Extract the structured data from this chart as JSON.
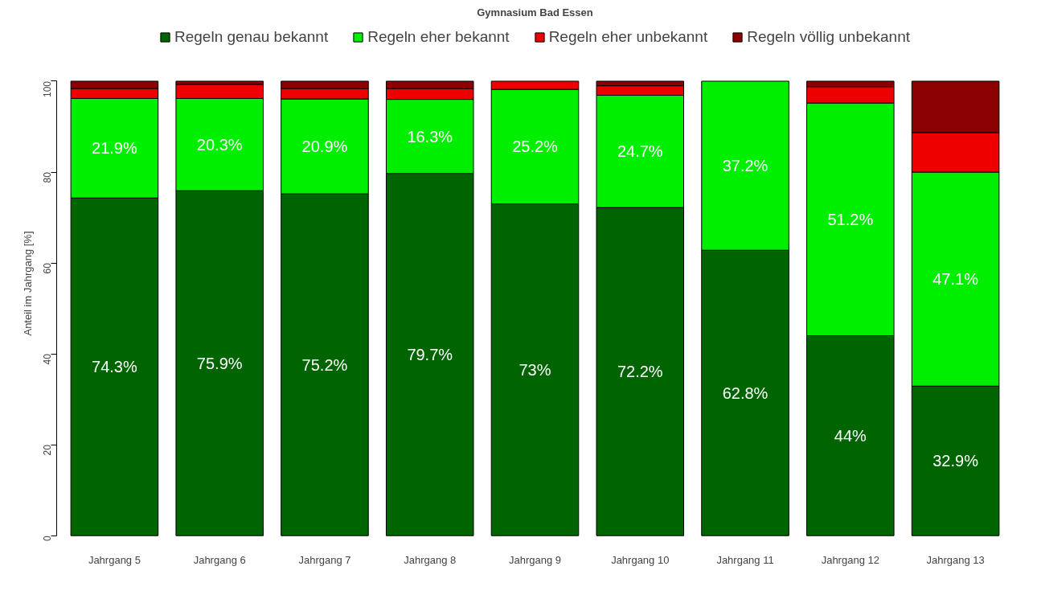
{
  "chart_data": {
    "type": "bar",
    "title": "Gymnasium Bad Essen",
    "ylabel": "Anteil im Jahrgang [%]",
    "stacked": true,
    "legend": "top",
    "grid": false,
    "categories": [
      "Jahrgang 5",
      "Jahrgang 6",
      "Jahrgang 7",
      "Jahrgang 8",
      "Jahrgang 9",
      "Jahrgang 10",
      "Jahrgang 11",
      "Jahrgang 12",
      "Jahrgang 13"
    ],
    "ylim": [
      0,
      100
    ],
    "yticks": [
      0,
      20,
      40,
      60,
      80,
      100
    ],
    "series": [
      {
        "name": "Regeln genau bekannt",
        "color": "#006400",
        "values": [
          74.3,
          75.9,
          75.2,
          79.7,
          73,
          72.2,
          62.8,
          44,
          32.9
        ],
        "value_labels": [
          "74.3%",
          "75.9%",
          "75.2%",
          "79.7%",
          "73%",
          "72.2%",
          "62.8%",
          "44%",
          "32.9%"
        ]
      },
      {
        "name": "Regeln eher bekannt",
        "color": "#00ee00",
        "values": [
          21.9,
          20.3,
          20.9,
          16.3,
          25.2,
          24.7,
          37.2,
          51.2,
          47.1
        ],
        "value_labels": [
          "21.9%",
          "20.3%",
          "20.9%",
          "16.3%",
          "25.2%",
          "24.7%",
          "37.2%",
          "51.2%",
          "47.1%"
        ]
      },
      {
        "name": "Regeln eher unbekannt",
        "color": "#ee0000",
        "values": [
          2.2,
          3.1,
          2.3,
          2.4,
          1.8,
          2.1,
          0,
          3.6,
          8.7
        ]
      },
      {
        "name": "Regeln völlig unbekannt",
        "color": "#8b0000",
        "values": [
          1.6,
          0.7,
          1.6,
          1.6,
          0,
          1.0,
          0,
          1.2,
          11.3
        ]
      }
    ]
  }
}
